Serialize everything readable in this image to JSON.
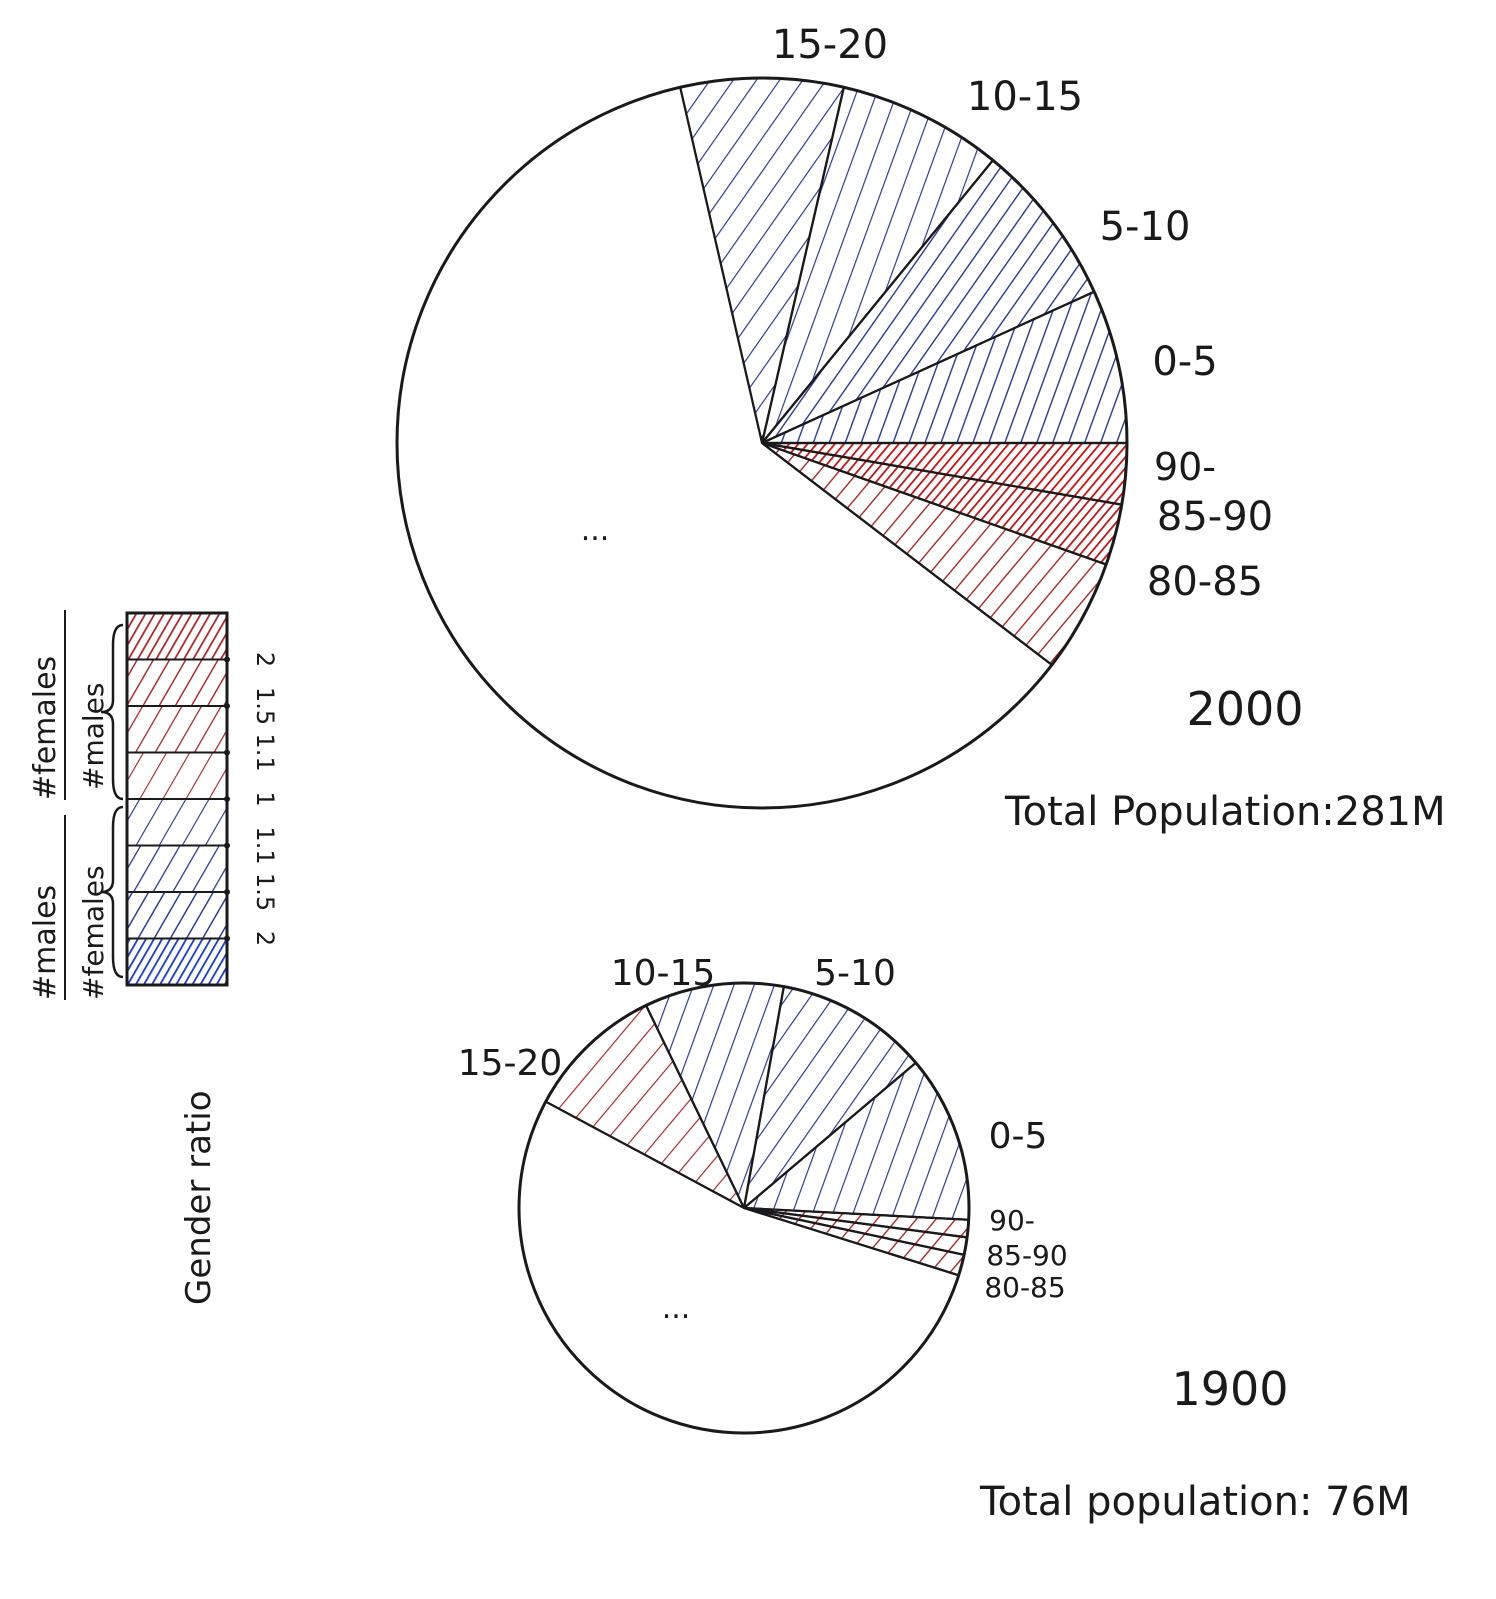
{
  "chart_data": [
    {
      "type": "pie",
      "id": "pie-2000",
      "year": "2000",
      "total_label": "Total Population:281M",
      "slices": [
        {
          "label": "0-5",
          "value": 6.8,
          "gender_ratio": 1.5,
          "color": "#2a3a8c"
        },
        {
          "label": "5-10",
          "value": 7.3,
          "gender_ratio": 1.5,
          "color": "#2a3a8c"
        },
        {
          "label": "10-15",
          "value": 7.3,
          "gender_ratio": 1.1,
          "color": "#2a3a8c"
        },
        {
          "label": "15-20",
          "value": 7.2,
          "gender_ratio": 1.1,
          "color": "#2a3a8c"
        },
        {
          "label": "",
          "value": 61.0,
          "gender_ratio": null,
          "color": "#ffffff"
        },
        {
          "label": "80-85",
          "value": 5.0,
          "gender_ratio": 1.5,
          "color": "#a52a2a"
        },
        {
          "label": "85-90",
          "value": 2.7,
          "gender_ratio": 2,
          "color": "#b01e1e"
        },
        {
          "label": "90-",
          "value": 2.7,
          "gender_ratio": 2,
          "color": "#c01818"
        }
      ],
      "ellipsis": "...",
      "label_order_clockwise": [
        "15-20",
        "10-15",
        "5-10",
        "0-5",
        "90-",
        "85-90",
        "80-85"
      ]
    },
    {
      "type": "pie",
      "id": "pie-1900",
      "year": "1900",
      "total_label": "Total population: 76M",
      "slices": [
        {
          "label": "0-5",
          "value": 12.0,
          "gender_ratio": 1.1,
          "color": "#2a3a8c"
        },
        {
          "label": "5-10",
          "value": 11.0,
          "gender_ratio": 1.1,
          "color": "#2a3a8c"
        },
        {
          "label": "10-15",
          "value": 10.0,
          "gender_ratio": 1.1,
          "color": "#2a3a8c"
        },
        {
          "label": "15-20",
          "value": 10.0,
          "gender_ratio": 1.1,
          "color": "#a52a2a"
        },
        {
          "label": "",
          "value": 53.0,
          "gender_ratio": null,
          "color": "#ffffff"
        },
        {
          "label": "80-85",
          "value": 1.5,
          "gender_ratio": 1.5,
          "color": "#a52a2a"
        },
        {
          "label": "85-90",
          "value": 1.25,
          "gender_ratio": 1.5,
          "color": "#a52a2a"
        },
        {
          "label": "90-",
          "value": 1.25,
          "gender_ratio": 1.5,
          "color": "#a52a2a"
        }
      ],
      "ellipsis": "...",
      "label_order_clockwise": [
        "10-15",
        "5-10",
        "15-20",
        "0-5",
        "90-",
        "85-90",
        "80-85"
      ]
    }
  ],
  "legend": {
    "title": "Gender ratio",
    "female_ratio_label_top": "#females",
    "female_ratio_label_bottom": "#males",
    "male_ratio_label_top": "#males",
    "male_ratio_label_bottom": "#females",
    "rows": [
      {
        "tick": "",
        "color": "#a52a2a",
        "density": 0.9
      },
      {
        "tick": "2",
        "color": "#a52a2a",
        "density": 0.6
      },
      {
        "tick": "1.5",
        "color": "#a52a2a",
        "density": 0.45
      },
      {
        "tick": "1.1",
        "color": "#a52a2a",
        "density": 0.3
      },
      {
        "tick": "1",
        "color": "#2a3a8c",
        "density": 0.3
      },
      {
        "tick": "1.1",
        "color": "#2a3a8c",
        "density": 0.45
      },
      {
        "tick": "1.5",
        "color": "#2a3a8c",
        "density": 0.6
      },
      {
        "tick": "2",
        "color": "#1f3fbf",
        "density": 0.95
      }
    ]
  }
}
